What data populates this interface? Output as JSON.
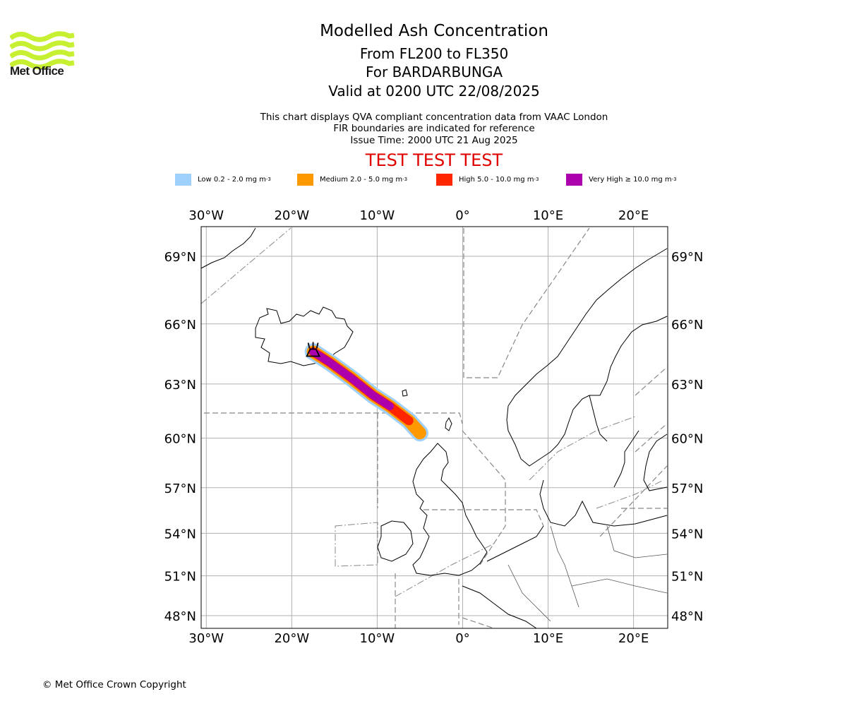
{
  "logo": {
    "text": "Met Office",
    "color": "#c8f032"
  },
  "header": {
    "title": "Modelled Ash Concentration",
    "subtitle_levels": "From FL200 to FL350",
    "subtitle_volcano": "For BARDARBUNGA",
    "subtitle_valid": "Valid at 0200 UTC 22/08/2025",
    "info_line1": "This chart displays QVA compliant concentration data from VAAC London",
    "info_line2": "FIR boundaries are indicated for reference",
    "info_line3": "Issue Time: 2000 UTC 21 Aug 2025",
    "test_banner": "TEST TEST TEST",
    "test_color": "#e00000"
  },
  "legend": [
    {
      "label": "Low 0.2 - 2.0 mg m",
      "sup": "-3",
      "color": "#9fd1ff"
    },
    {
      "label": "Medium 2.0 - 5.0 mg m",
      "sup": "-3",
      "color": "#ff9900"
    },
    {
      "label": "High 5.0 - 10.0 mg m",
      "sup": "-3",
      "color": "#ff2600"
    },
    {
      "label": "Very High  ≥  10.0 mg m",
      "sup": "-3",
      "color": "#ad00ad"
    }
  ],
  "map": {
    "lon_labels": [
      "30°W",
      "20°W",
      "10°W",
      "0°",
      "10°E",
      "20°E"
    ],
    "lat_labels": [
      "69°N",
      "66°N",
      "63°N",
      "60°N",
      "57°N",
      "54°N",
      "51°N",
      "48°N"
    ],
    "lon_values": [
      -30,
      -20,
      -10,
      0,
      10,
      20
    ],
    "lat_values": [
      69,
      66,
      63,
      60,
      57,
      54,
      51,
      48
    ],
    "lon_range": [
      -30.6,
      24
    ],
    "lat_range": [
      47,
      70.2
    ],
    "volcano": {
      "name": "BARDARBUNGA",
      "lon": -17.5,
      "lat": 64.64
    },
    "plume_axis": [
      [
        -17.5,
        64.65
      ],
      [
        -15.5,
        64.1
      ],
      [
        -13.0,
        63.3
      ],
      [
        -10.5,
        62.4
      ],
      [
        -8.5,
        61.8
      ],
      [
        -6.3,
        61.0
      ],
      [
        -5.0,
        60.3
      ]
    ]
  },
  "footer": {
    "copyright": "© Met Office Crown Copyright"
  }
}
